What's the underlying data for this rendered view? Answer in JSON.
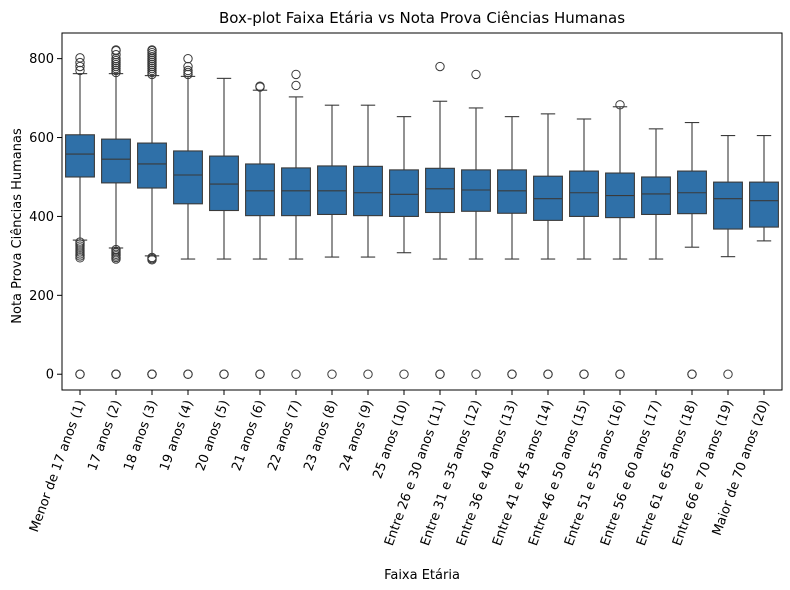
{
  "chart_data": {
    "type": "box",
    "title": "Box-plot Faixa Etária vs Nota Prova Ciências Humanas",
    "xlabel": "Faixa Etária",
    "ylabel": "Nota Prova Ciências Humanas",
    "ylim": [
      -40,
      865
    ],
    "yticks": [
      0,
      200,
      400,
      600,
      800
    ],
    "grid": false,
    "box_color": "#2f70a8",
    "line_color": "#3a3a3a",
    "categories": [
      "Menor de 17 anos (1)",
      "17 anos (2)",
      "18 anos (3)",
      "19 anos (4)",
      "20 anos (5)",
      "21 anos (6)",
      "22 anos (7)",
      "23 anos (8)",
      "24 anos (9)",
      "25 anos (10)",
      "Entre 26 e 30 anos (11)",
      "Entre 31 e 35 anos (12)",
      "Entre 36 e 40 anos (13)",
      "Entre 41 e 45 anos (14)",
      "Entre 46 e 50 anos (15)",
      "Entre 51 e 55 anos (16)",
      "Entre 56 e 60 anos (17)",
      "Entre 61 e 65 anos (18)",
      "Entre 66 e 70 anos (19)",
      "Maior de 70 anos (20)"
    ],
    "boxes": [
      {
        "whislo": 340,
        "q1": 500,
        "med": 558,
        "q3": 607,
        "whishi": 762,
        "fliers": [
          0,
          0,
          295,
          300,
          305,
          310,
          315,
          320,
          325,
          330,
          335,
          770,
          780,
          790,
          802
        ]
      },
      {
        "whislo": 320,
        "q1": 485,
        "med": 545,
        "q3": 596,
        "whishi": 762,
        "fliers": [
          0,
          0,
          0,
          292,
          296,
          300,
          304,
          308,
          312,
          316,
          765,
          770,
          775,
          780,
          785,
          790,
          795,
          800,
          810,
          820,
          822
        ]
      },
      {
        "whislo": 300,
        "q1": 472,
        "med": 533,
        "q3": 586,
        "whishi": 757,
        "fliers": [
          0,
          0,
          0,
          290,
          293,
          296,
          760,
          765,
          770,
          775,
          780,
          785,
          790,
          795,
          800,
          805,
          810,
          815,
          820,
          822
        ]
      },
      {
        "whislo": 292,
        "q1": 432,
        "med": 505,
        "q3": 566,
        "whishi": 755,
        "fliers": [
          0,
          0,
          760,
          765,
          770,
          780,
          800
        ]
      },
      {
        "whislo": 292,
        "q1": 415,
        "med": 482,
        "q3": 553,
        "whishi": 750,
        "fliers": [
          0,
          0
        ]
      },
      {
        "whislo": 292,
        "q1": 402,
        "med": 465,
        "q3": 533,
        "whishi": 720,
        "fliers": [
          0,
          0,
          728,
          730
        ]
      },
      {
        "whislo": 292,
        "q1": 402,
        "med": 465,
        "q3": 523,
        "whishi": 703,
        "fliers": [
          0,
          732,
          760
        ]
      },
      {
        "whislo": 297,
        "q1": 405,
        "med": 465,
        "q3": 528,
        "whishi": 682,
        "fliers": [
          0
        ]
      },
      {
        "whislo": 297,
        "q1": 402,
        "med": 460,
        "q3": 527,
        "whishi": 682,
        "fliers": [
          0
        ]
      },
      {
        "whislo": 308,
        "q1": 400,
        "med": 456,
        "q3": 518,
        "whishi": 653,
        "fliers": [
          0
        ]
      },
      {
        "whislo": 292,
        "q1": 410,
        "med": 470,
        "q3": 522,
        "whishi": 692,
        "fliers": [
          0,
          0,
          780
        ]
      },
      {
        "whislo": 292,
        "q1": 413,
        "med": 467,
        "q3": 518,
        "whishi": 675,
        "fliers": [
          0,
          760
        ]
      },
      {
        "whislo": 292,
        "q1": 408,
        "med": 465,
        "q3": 518,
        "whishi": 653,
        "fliers": [
          0,
          0
        ]
      },
      {
        "whislo": 292,
        "q1": 390,
        "med": 445,
        "q3": 502,
        "whishi": 660,
        "fliers": [
          0,
          0
        ]
      },
      {
        "whislo": 292,
        "q1": 400,
        "med": 460,
        "q3": 515,
        "whishi": 647,
        "fliers": [
          0,
          0
        ]
      },
      {
        "whislo": 292,
        "q1": 397,
        "med": 453,
        "q3": 510,
        "whishi": 678,
        "fliers": [
          0,
          0,
          683
        ]
      },
      {
        "whislo": 292,
        "q1": 405,
        "med": 457,
        "q3": 500,
        "whishi": 622,
        "fliers": []
      },
      {
        "whislo": 322,
        "q1": 407,
        "med": 460,
        "q3": 515,
        "whishi": 638,
        "fliers": [
          0,
          0
        ]
      },
      {
        "whislo": 298,
        "q1": 368,
        "med": 445,
        "q3": 487,
        "whishi": 605,
        "fliers": [
          0
        ]
      },
      {
        "whislo": 338,
        "q1": 373,
        "med": 440,
        "q3": 487,
        "whishi": 605,
        "fliers": []
      }
    ]
  }
}
